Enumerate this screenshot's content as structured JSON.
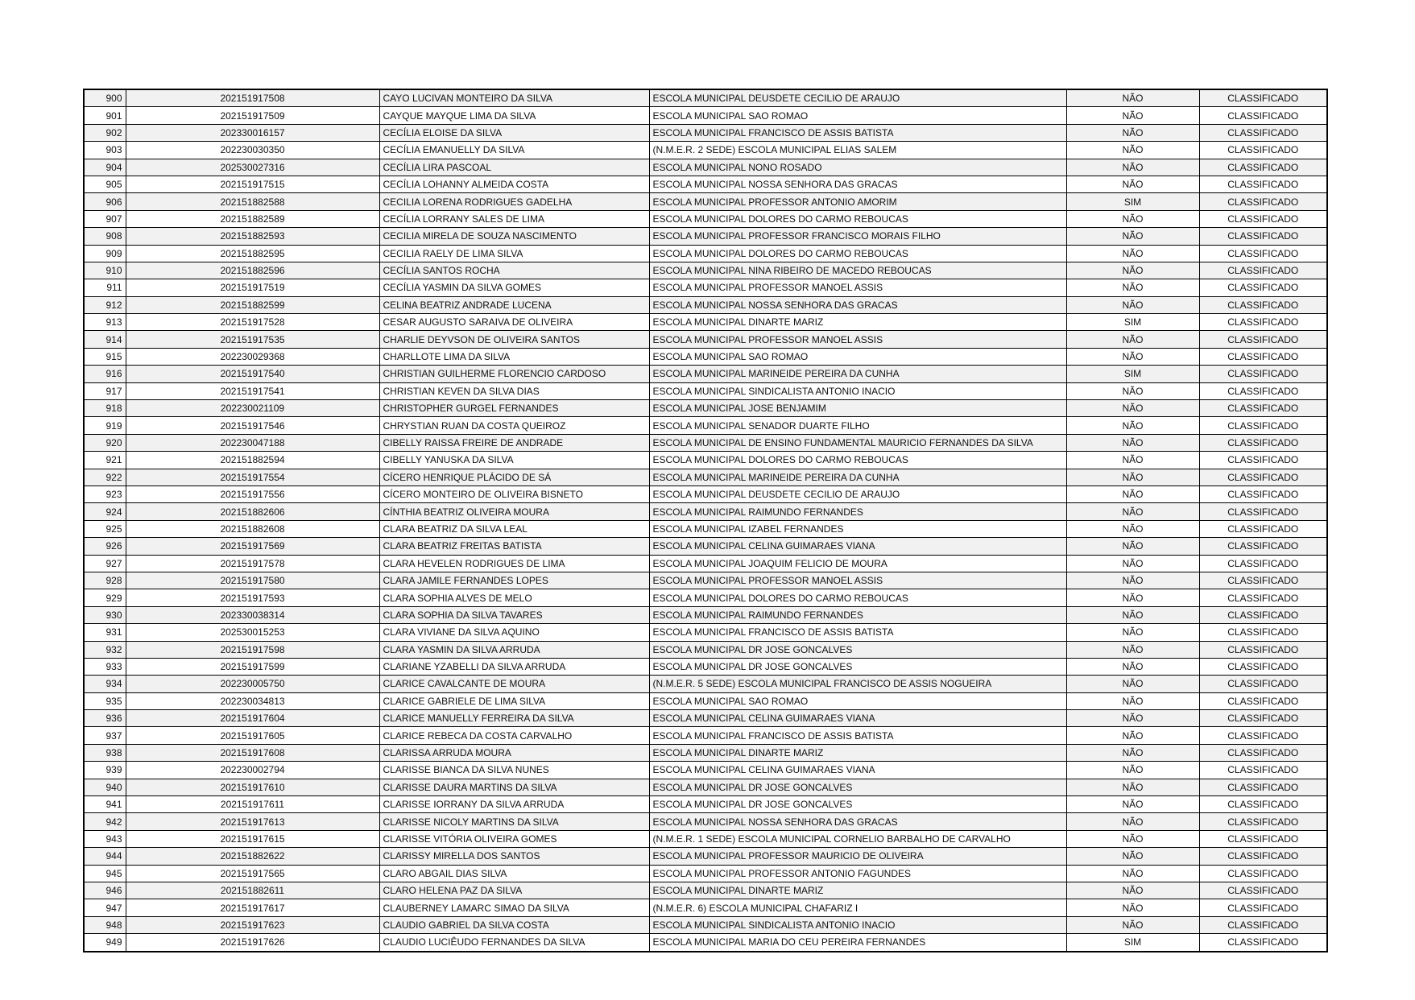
{
  "colors": {
    "stripe": "#f1f1f1",
    "border": "#000000",
    "text": "#111111",
    "page_background": "#ffffff"
  },
  "table": {
    "rows": [
      {
        "num": "900",
        "id": "202151917508",
        "name": "CAYO LUCIVAN MONTEIRO DA SILVA",
        "school": "ESCOLA MUNICIPAL DEUSDETE CECILIO DE ARAUJO",
        "flag": "NÃO",
        "status": "CLASSIFICADO"
      },
      {
        "num": "901",
        "id": "202151917509",
        "name": "CAYQUE MAYQUE LIMA DA SILVA",
        "school": "ESCOLA MUNICIPAL SAO ROMAO",
        "flag": "NÃO",
        "status": "CLASSIFICADO"
      },
      {
        "num": "902",
        "id": "202330016157",
        "name": "CECÍLIA ELOISE DA SILVA",
        "school": "ESCOLA MUNICIPAL FRANCISCO DE ASSIS BATISTA",
        "flag": "NÃO",
        "status": "CLASSIFICADO"
      },
      {
        "num": "903",
        "id": "202230030350",
        "name": "CECÍLIA EMANUELLY DA SILVA",
        "school": "(N.M.E.R. 2 SEDE) ESCOLA MUNICIPAL ELIAS SALEM",
        "flag": "NÃO",
        "status": "CLASSIFICADO"
      },
      {
        "num": "904",
        "id": "202530027316",
        "name": "CECÍLIA LIRA PASCOAL",
        "school": "ESCOLA MUNICIPAL NONO ROSADO",
        "flag": "NÃO",
        "status": "CLASSIFICADO"
      },
      {
        "num": "905",
        "id": "202151917515",
        "name": "CECÍLIA LOHANNY ALMEIDA COSTA",
        "school": "ESCOLA MUNICIPAL NOSSA SENHORA DAS GRACAS",
        "flag": "NÃO",
        "status": "CLASSIFICADO"
      },
      {
        "num": "906",
        "id": "202151882588",
        "name": "CECILIA LORENA RODRIGUES GADELHA",
        "school": "ESCOLA MUNICIPAL PROFESSOR ANTONIO AMORIM",
        "flag": "SIM",
        "status": "CLASSIFICADO"
      },
      {
        "num": "907",
        "id": "202151882589",
        "name": "CECÍLIA LORRANY SALES DE LIMA",
        "school": "ESCOLA MUNICIPAL DOLORES DO CARMO REBOUCAS",
        "flag": "NÃO",
        "status": "CLASSIFICADO"
      },
      {
        "num": "908",
        "id": "202151882593",
        "name": "CECILIA MIRELA DE SOUZA NASCIMENTO",
        "school": "ESCOLA MUNICIPAL PROFESSOR FRANCISCO MORAIS FILHO",
        "flag": "NÃO",
        "status": "CLASSIFICADO"
      },
      {
        "num": "909",
        "id": "202151882595",
        "name": "CECILIA RAELY DE LIMA SILVA",
        "school": "ESCOLA MUNICIPAL DOLORES DO CARMO REBOUCAS",
        "flag": "NÃO",
        "status": "CLASSIFICADO"
      },
      {
        "num": "910",
        "id": "202151882596",
        "name": "CECÍLIA SANTOS ROCHA",
        "school": "ESCOLA MUNICIPAL NINA RIBEIRO DE MACEDO REBOUCAS",
        "flag": "NÃO",
        "status": "CLASSIFICADO"
      },
      {
        "num": "911",
        "id": "202151917519",
        "name": "CECÍLIA YASMIN DA SILVA GOMES",
        "school": "ESCOLA MUNICIPAL PROFESSOR MANOEL ASSIS",
        "flag": "NÃO",
        "status": "CLASSIFICADO"
      },
      {
        "num": "912",
        "id": "202151882599",
        "name": "CELINA BEATRIZ ANDRADE LUCENA",
        "school": "ESCOLA MUNICIPAL NOSSA SENHORA DAS GRACAS",
        "flag": "NÃO",
        "status": "CLASSIFICADO"
      },
      {
        "num": "913",
        "id": "202151917528",
        "name": "CESAR AUGUSTO SARAIVA DE OLIVEIRA",
        "school": "ESCOLA MUNICIPAL DINARTE MARIZ",
        "flag": "SIM",
        "status": "CLASSIFICADO"
      },
      {
        "num": "914",
        "id": "202151917535",
        "name": "CHARLIE DEYVSON DE OLIVEIRA SANTOS",
        "school": "ESCOLA MUNICIPAL PROFESSOR MANOEL ASSIS",
        "flag": "NÃO",
        "status": "CLASSIFICADO"
      },
      {
        "num": "915",
        "id": "202230029368",
        "name": "CHARLLOTE LIMA DA SILVA",
        "school": "ESCOLA MUNICIPAL SAO ROMAO",
        "flag": "NÃO",
        "status": "CLASSIFICADO"
      },
      {
        "num": "916",
        "id": "202151917540",
        "name": "CHRISTIAN GUILHERME FLORENCIO CARDOSO",
        "school": "ESCOLA MUNICIPAL MARINEIDE PEREIRA DA CUNHA",
        "flag": "SIM",
        "status": "CLASSIFICADO"
      },
      {
        "num": "917",
        "id": "202151917541",
        "name": "CHRISTIAN KEVEN DA SILVA DIAS",
        "school": "ESCOLA MUNICIPAL SINDICALISTA ANTONIO INACIO",
        "flag": "NÃO",
        "status": "CLASSIFICADO"
      },
      {
        "num": "918",
        "id": "202230021109",
        "name": "CHRISTOPHER GURGEL FERNANDES",
        "school": "ESCOLA MUNICIPAL JOSE BENJAMIM",
        "flag": "NÃO",
        "status": "CLASSIFICADO"
      },
      {
        "num": "919",
        "id": "202151917546",
        "name": "CHRYSTIAN RUAN DA COSTA QUEIROZ",
        "school": "ESCOLA MUNICIPAL SENADOR DUARTE FILHO",
        "flag": "NÃO",
        "status": "CLASSIFICADO"
      },
      {
        "num": "920",
        "id": "202230047188",
        "name": "CIBELLY RAISSA FREIRE DE ANDRADE",
        "school": "ESCOLA MUNICIPAL DE ENSINO FUNDAMENTAL MAURICIO FERNANDES DA SILVA",
        "flag": "NÃO",
        "status": "CLASSIFICADO"
      },
      {
        "num": "921",
        "id": "202151882594",
        "name": "CIBELLY YANUSKA DA SILVA",
        "school": "ESCOLA MUNICIPAL DOLORES DO CARMO REBOUCAS",
        "flag": "NÃO",
        "status": "CLASSIFICADO"
      },
      {
        "num": "922",
        "id": "202151917554",
        "name": "CÍCERO HENRIQUE PLÁCIDO DE SÁ",
        "school": "ESCOLA MUNICIPAL MARINEIDE PEREIRA DA CUNHA",
        "flag": "NÃO",
        "status": "CLASSIFICADO"
      },
      {
        "num": "923",
        "id": "202151917556",
        "name": "CÍCERO MONTEIRO DE OLIVEIRA BISNETO",
        "school": "ESCOLA MUNICIPAL DEUSDETE CECILIO DE ARAUJO",
        "flag": "NÃO",
        "status": "CLASSIFICADO"
      },
      {
        "num": "924",
        "id": "202151882606",
        "name": "CÍNTHIA BEATRIZ OLIVEIRA MOURA",
        "school": "ESCOLA MUNICIPAL RAIMUNDO FERNANDES",
        "flag": "NÃO",
        "status": "CLASSIFICADO"
      },
      {
        "num": "925",
        "id": "202151882608",
        "name": "CLARA BEATRIZ DA SILVA LEAL",
        "school": "ESCOLA MUNICIPAL IZABEL FERNANDES",
        "flag": "NÃO",
        "status": "CLASSIFICADO"
      },
      {
        "num": "926",
        "id": "202151917569",
        "name": "CLARA BEATRIZ FREITAS BATISTA",
        "school": "ESCOLA MUNICIPAL CELINA GUIMARAES VIANA",
        "flag": "NÃO",
        "status": "CLASSIFICADO"
      },
      {
        "num": "927",
        "id": "202151917578",
        "name": "CLARA HEVELEN RODRIGUES DE LIMA",
        "school": "ESCOLA MUNICIPAL JOAQUIM FELICIO DE MOURA",
        "flag": "NÃO",
        "status": "CLASSIFICADO"
      },
      {
        "num": "928",
        "id": "202151917580",
        "name": "CLARA JAMILE FERNANDES LOPES",
        "school": "ESCOLA MUNICIPAL PROFESSOR MANOEL ASSIS",
        "flag": "NÃO",
        "status": "CLASSIFICADO"
      },
      {
        "num": "929",
        "id": "202151917593",
        "name": "CLARA SOPHIA ALVES DE MELO",
        "school": "ESCOLA MUNICIPAL DOLORES DO CARMO REBOUCAS",
        "flag": "NÃO",
        "status": "CLASSIFICADO"
      },
      {
        "num": "930",
        "id": "202330038314",
        "name": "CLARA SOPHIA DA SILVA TAVARES",
        "school": "ESCOLA MUNICIPAL RAIMUNDO FERNANDES",
        "flag": "NÃO",
        "status": "CLASSIFICADO"
      },
      {
        "num": "931",
        "id": "202530015253",
        "name": "CLARA VIVIANE DA SILVA AQUINO",
        "school": "ESCOLA MUNICIPAL FRANCISCO DE ASSIS BATISTA",
        "flag": "NÃO",
        "status": "CLASSIFICADO"
      },
      {
        "num": "932",
        "id": "202151917598",
        "name": "CLARA YASMIN DA SILVA ARRUDA",
        "school": "ESCOLA MUNICIPAL DR JOSE GONCALVES",
        "flag": "NÃO",
        "status": "CLASSIFICADO"
      },
      {
        "num": "933",
        "id": "202151917599",
        "name": "CLARIANE YZABELLI DA SILVA ARRUDA",
        "school": "ESCOLA MUNICIPAL DR JOSE GONCALVES",
        "flag": "NÃO",
        "status": "CLASSIFICADO"
      },
      {
        "num": "934",
        "id": "202230005750",
        "name": "CLARICE CAVALCANTE DE MOURA",
        "school": "(N.M.E.R. 5 SEDE) ESCOLA MUNICIPAL FRANCISCO DE ASSIS NOGUEIRA",
        "flag": "NÃO",
        "status": "CLASSIFICADO"
      },
      {
        "num": "935",
        "id": "202230034813",
        "name": "CLARICE GABRIELE DE LIMA SILVA",
        "school": "ESCOLA MUNICIPAL SAO ROMAO",
        "flag": "NÃO",
        "status": "CLASSIFICADO"
      },
      {
        "num": "936",
        "id": "202151917604",
        "name": "CLARICE MANUELLY FERREIRA DA SILVA",
        "school": "ESCOLA MUNICIPAL CELINA GUIMARAES VIANA",
        "flag": "NÃO",
        "status": "CLASSIFICADO"
      },
      {
        "num": "937",
        "id": "202151917605",
        "name": "CLARICE REBECA DA COSTA CARVALHO",
        "school": "ESCOLA MUNICIPAL FRANCISCO DE ASSIS BATISTA",
        "flag": "NÃO",
        "status": "CLASSIFICADO"
      },
      {
        "num": "938",
        "id": "202151917608",
        "name": "CLARISSA ARRUDA MOURA",
        "school": "ESCOLA MUNICIPAL DINARTE MARIZ",
        "flag": "NÃO",
        "status": "CLASSIFICADO"
      },
      {
        "num": "939",
        "id": "202230002794",
        "name": "CLARISSE BIANCA DA SILVA NUNES",
        "school": "ESCOLA MUNICIPAL CELINA GUIMARAES VIANA",
        "flag": "NÃO",
        "status": "CLASSIFICADO"
      },
      {
        "num": "940",
        "id": "202151917610",
        "name": "CLARISSE DAURA MARTINS DA SILVA",
        "school": "ESCOLA MUNICIPAL DR JOSE GONCALVES",
        "flag": "NÃO",
        "status": "CLASSIFICADO"
      },
      {
        "num": "941",
        "id": "202151917611",
        "name": "CLARISSE IORRANY DA SILVA ARRUDA",
        "school": "ESCOLA MUNICIPAL DR JOSE GONCALVES",
        "flag": "NÃO",
        "status": "CLASSIFICADO"
      },
      {
        "num": "942",
        "id": "202151917613",
        "name": "CLARISSE NICOLY MARTINS DA SILVA",
        "school": "ESCOLA MUNICIPAL NOSSA SENHORA DAS GRACAS",
        "flag": "NÃO",
        "status": "CLASSIFICADO"
      },
      {
        "num": "943",
        "id": "202151917615",
        "name": "CLARISSE VITÓRIA OLIVEIRA GOMES",
        "school": "(N.M.E.R. 1 SEDE) ESCOLA MUNICIPAL CORNELIO BARBALHO DE CARVALHO",
        "flag": "NÃO",
        "status": "CLASSIFICADO"
      },
      {
        "num": "944",
        "id": "202151882622",
        "name": "CLARISSY MIRELLA DOS SANTOS",
        "school": "ESCOLA MUNICIPAL PROFESSOR MAURICIO DE OLIVEIRA",
        "flag": "NÃO",
        "status": "CLASSIFICADO"
      },
      {
        "num": "945",
        "id": "202151917565",
        "name": "CLARO ABGAIL DIAS SILVA",
        "school": "ESCOLA MUNICIPAL PROFESSOR ANTONIO FAGUNDES",
        "flag": "NÃO",
        "status": "CLASSIFICADO"
      },
      {
        "num": "946",
        "id": "202151882611",
        "name": "CLARO HELENA PAZ DA SILVA",
        "school": "ESCOLA MUNICIPAL DINARTE MARIZ",
        "flag": "NÃO",
        "status": "CLASSIFICADO"
      },
      {
        "num": "947",
        "id": "202151917617",
        "name": "CLAUBERNEY LAMARC SIMAO DA SILVA",
        "school": "(N.M.E.R. 6) ESCOLA MUNICIPAL CHAFARIZ I",
        "flag": "NÃO",
        "status": "CLASSIFICADO"
      },
      {
        "num": "948",
        "id": "202151917623",
        "name": "CLAUDIO GABRIEL DA SILVA COSTA",
        "school": "ESCOLA MUNICIPAL SINDICALISTA ANTONIO INACIO",
        "flag": "NÃO",
        "status": "CLASSIFICADO"
      },
      {
        "num": "949",
        "id": "202151917626",
        "name": "CLAUDIO LUCIÊUDO FERNANDES DA SILVA",
        "school": "ESCOLA MUNICIPAL MARIA DO CEU PEREIRA FERNANDES",
        "flag": "SIM",
        "status": "CLASSIFICADO"
      }
    ]
  }
}
